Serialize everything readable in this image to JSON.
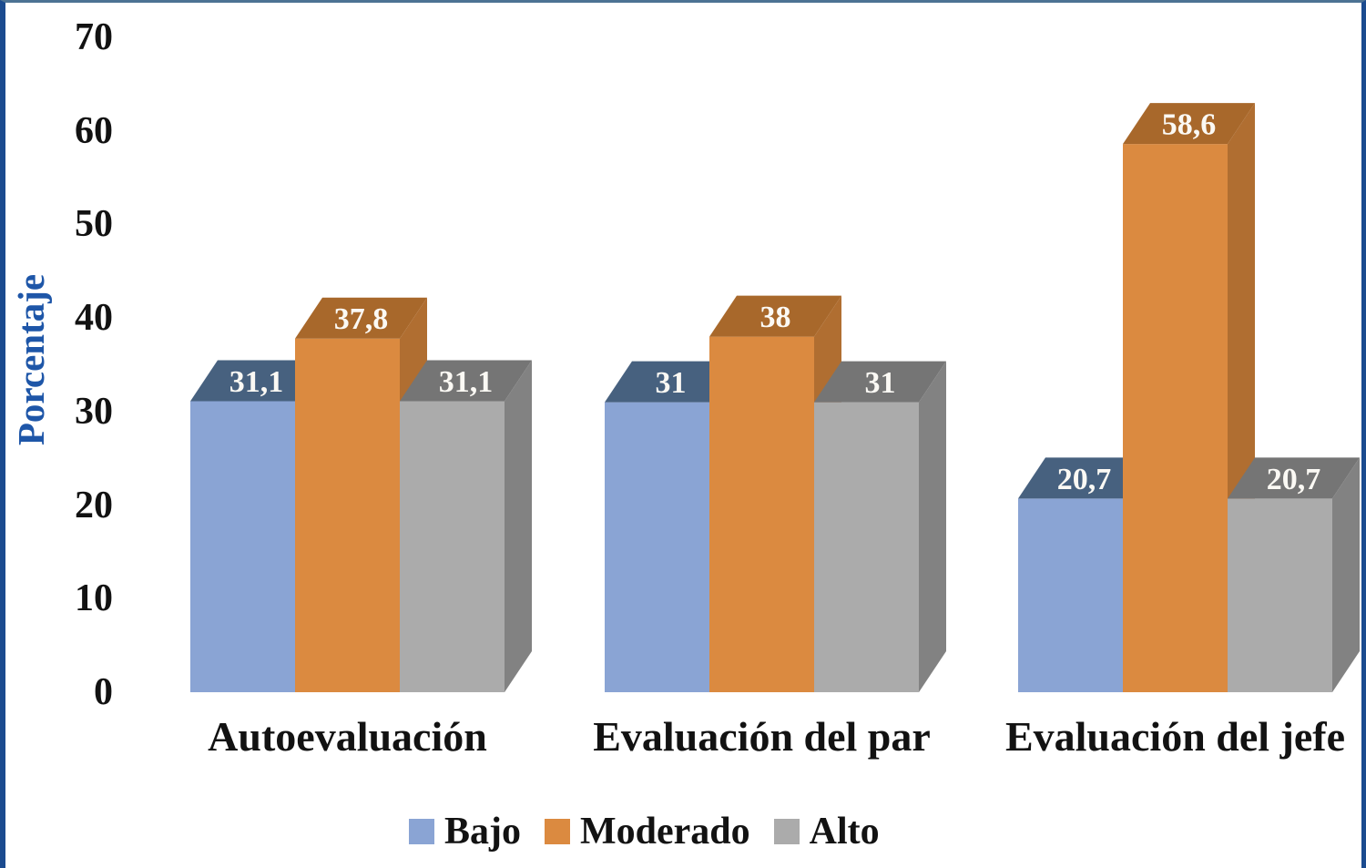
{
  "chart_data": {
    "type": "bar",
    "style": "3d-clustered-column",
    "title": "",
    "xlabel": "",
    "ylabel": "Porcentaje",
    "ylabel_color": "#1E56A8",
    "categories": [
      "Autoevaluación",
      "Evaluación del par",
      "Evaluación del jefe"
    ],
    "series": [
      {
        "name": "Bajo",
        "values": [
          31.1,
          31,
          20.7
        ],
        "labels": [
          "31,1",
          "31",
          "20,7"
        ],
        "front_color": "#8AA4D4",
        "top_color": "#47617F",
        "side_color": "#5C7493"
      },
      {
        "name": "Moderado",
        "values": [
          37.8,
          38,
          58.6
        ],
        "labels": [
          "37,8",
          "38",
          "58,6"
        ],
        "front_color": "#DB8A40",
        "top_color": "#A8682B",
        "side_color": "#B06E31"
      },
      {
        "name": "Alto",
        "values": [
          31.1,
          31,
          20.7
        ],
        "labels": [
          "31,1",
          "31",
          "20,7"
        ],
        "front_color": "#ABABAB",
        "top_color": "#757575",
        "side_color": "#828282"
      }
    ],
    "y_ticks": [
      "0",
      "10",
      "20",
      "30",
      "40",
      "50",
      "60",
      "70"
    ],
    "y_tick_values": [
      0,
      10,
      20,
      30,
      40,
      50,
      60,
      70
    ],
    "ylim": [
      0,
      70
    ],
    "grid": false,
    "legend_position": "bottom",
    "value_label_color": "#FBF9F4",
    "tick_label_color": "#121212"
  }
}
